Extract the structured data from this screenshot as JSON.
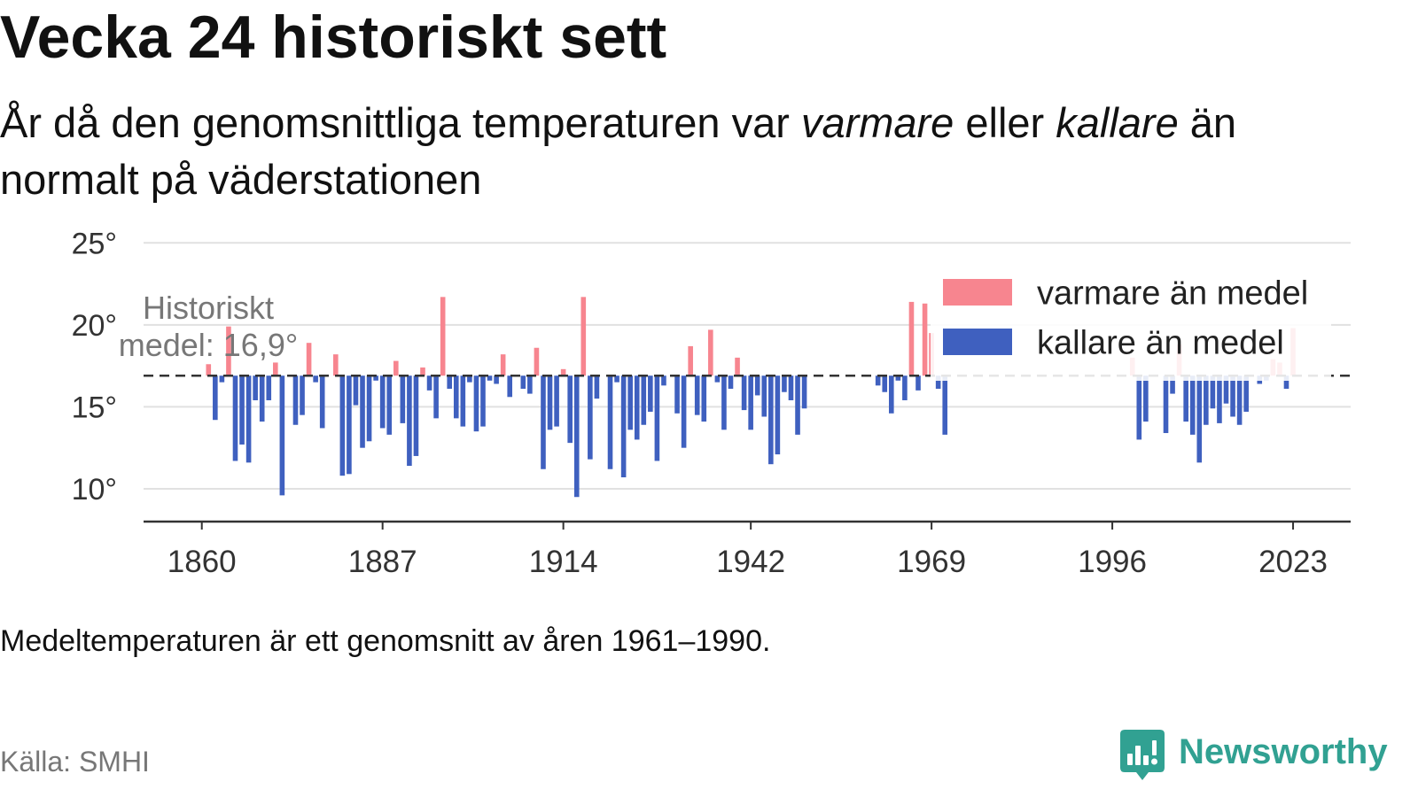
{
  "chart_data": {
    "type": "bar",
    "title": "Vecka 24 historiskt sett",
    "subtitle": [
      {
        "text": "År då den genomsnittliga temperaturen var ",
        "italic": false
      },
      {
        "text": "varmare",
        "italic": true
      },
      {
        "text": " eller ",
        "italic": false
      },
      {
        "text": "kallare",
        "italic": true
      },
      {
        "text": " än normalt på väderstationen",
        "italic": false
      }
    ],
    "x": [
      1861,
      1862,
      1863,
      1864,
      1865,
      1866,
      1867,
      1868,
      1869,
      1870,
      1871,
      1872,
      1874,
      1875,
      1876,
      1877,
      1878,
      1880,
      1881,
      1882,
      1883,
      1884,
      1885,
      1886,
      1887,
      1888,
      1889,
      1890,
      1891,
      1892,
      1893,
      1894,
      1895,
      1896,
      1897,
      1898,
      1899,
      1900,
      1901,
      1902,
      1903,
      1904,
      1905,
      1906,
      1908,
      1909,
      1910,
      1911,
      1912,
      1913,
      1914,
      1915,
      1916,
      1917,
      1918,
      1919,
      1921,
      1922,
      1923,
      1924,
      1925,
      1926,
      1927,
      1928,
      1929,
      1931,
      1932,
      1933,
      1934,
      1935,
      1936,
      1937,
      1938,
      1939,
      1940,
      1941,
      1942,
      1943,
      1944,
      1945,
      1946,
      1947,
      1948,
      1949,
      1950,
      1961,
      1962,
      1963,
      1964,
      1965,
      1966,
      1967,
      1968,
      1969,
      1970,
      1971,
      1999,
      2000,
      2001,
      2004,
      2005,
      2006,
      2007,
      2008,
      2009,
      2010,
      2011,
      2012,
      2013,
      2014,
      2015,
      2016,
      2018,
      2019,
      2020,
      2021,
      2022,
      2023
    ],
    "values": [
      17.6,
      14.2,
      16.5,
      19.9,
      11.7,
      12.7,
      11.6,
      15.4,
      14.1,
      15.4,
      17.7,
      9.6,
      13.9,
      14.5,
      18.9,
      16.5,
      13.7,
      18.2,
      10.8,
      10.9,
      15.1,
      12.5,
      12.9,
      16.6,
      13.7,
      13.3,
      17.8,
      14.0,
      11.4,
      12.0,
      17.4,
      16.0,
      14.3,
      21.7,
      16.1,
      14.3,
      13.8,
      16.5,
      13.5,
      13.8,
      16.6,
      16.4,
      18.2,
      15.6,
      16.1,
      15.8,
      18.6,
      11.2,
      13.6,
      13.8,
      17.3,
      12.8,
      9.5,
      21.7,
      11.8,
      15.5,
      11.2,
      16.5,
      10.7,
      13.6,
      13.0,
      13.9,
      14.7,
      11.7,
      16.3,
      14.6,
      12.5,
      18.7,
      14.5,
      14.1,
      19.7,
      16.5,
      13.6,
      16.1,
      18.0,
      14.8,
      13.6,
      15.7,
      14.4,
      11.5,
      12.1,
      15.9,
      15.4,
      13.3,
      14.9,
      16.3,
      15.9,
      14.6,
      16.6,
      15.4,
      21.4,
      16.0,
      21.3,
      19.5,
      16.1,
      13.3,
      18.0,
      13.0,
      14.1,
      13.4,
      15.8,
      18.8,
      14.1,
      13.3,
      11.6,
      13.9,
      14.9,
      14.0,
      15.2,
      14.4,
      13.9,
      14.7,
      16.4,
      16.6,
      17.9,
      17.7,
      16.1,
      19.8
    ],
    "baseline": 16.9,
    "baseline_label": "Historiskt medel: 16,9°",
    "xlim": [
      1851.3,
      2031.6
    ],
    "ylim": [
      8,
      25.5
    ],
    "x_ticks": [
      1860,
      1887,
      1914,
      1942,
      1969,
      1996,
      2023
    ],
    "y_ticks": [
      10,
      15,
      20,
      25
    ],
    "y_tick_labels": [
      "10°",
      "15°",
      "20°",
      "25°"
    ],
    "series": [
      {
        "name": "varmare än medel",
        "color": "#f7858f"
      },
      {
        "name": "kallare än medel",
        "color": "#3f60bf"
      }
    ],
    "legend_position": "top-right",
    "grid": true,
    "note": "Medeltemperaturen är ett genomsnitt av åren 1961–1990.",
    "source": "Källa: SMHI"
  },
  "branding": {
    "name": "Newsworthy",
    "color": "#31a192",
    "icon": "newsworthy-logo-icon"
  }
}
